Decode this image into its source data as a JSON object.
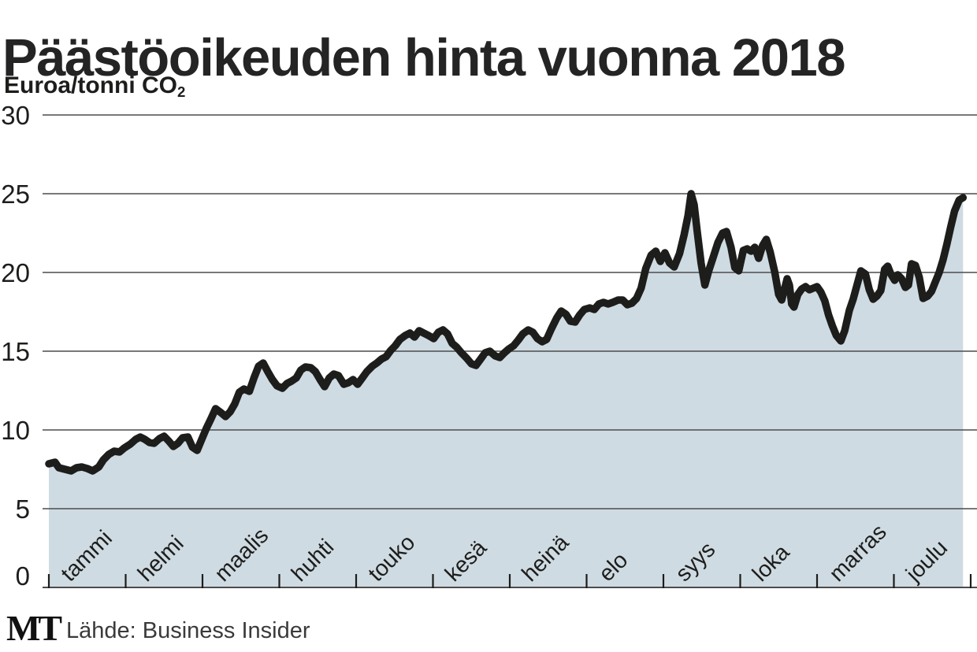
{
  "title": "Päästöoikeuden hinta vuonna 2018",
  "unit": {
    "text": "Euroa/tonni CO",
    "subscript": "2"
  },
  "footer": {
    "logo": "MT",
    "source": "Lähde: Business Insider"
  },
  "chart_data": {
    "type": "area",
    "title": "Päästöoikeuden hinta vuonna 2018",
    "ylabel": "Euroa/tonni CO2",
    "ylim": [
      0,
      30
    ],
    "y_ticks": [
      30,
      25,
      20,
      15,
      10,
      5,
      0
    ],
    "x_months": [
      "tammi",
      "helmi",
      "maalis",
      "huhti",
      "touko",
      "kesä",
      "heinä",
      "elo",
      "syys",
      "loka",
      "marras",
      "joulu"
    ],
    "x_unit": "months (0 = Jan 1, 1 = Feb 1, ... 11.9 = end of Dec)",
    "grid": true,
    "legend": false,
    "colors": {
      "line": "#1d1d1b",
      "area": "#cfdbe2",
      "grid": "#4c4c4c",
      "tick": "#1d1d1b",
      "label": "#1d1d1b"
    },
    "points": [
      [
        0.0,
        7.85
      ],
      [
        0.08,
        7.95
      ],
      [
        0.13,
        7.6
      ],
      [
        0.21,
        7.5
      ],
      [
        0.29,
        7.4
      ],
      [
        0.36,
        7.6
      ],
      [
        0.43,
        7.65
      ],
      [
        0.5,
        7.55
      ],
      [
        0.57,
        7.4
      ],
      [
        0.65,
        7.65
      ],
      [
        0.71,
        8.1
      ],
      [
        0.78,
        8.45
      ],
      [
        0.85,
        8.65
      ],
      [
        0.92,
        8.6
      ],
      [
        0.98,
        8.85
      ],
      [
        1.06,
        9.1
      ],
      [
        1.13,
        9.4
      ],
      [
        1.19,
        9.55
      ],
      [
        1.25,
        9.4
      ],
      [
        1.31,
        9.2
      ],
      [
        1.37,
        9.15
      ],
      [
        1.44,
        9.45
      ],
      [
        1.5,
        9.6
      ],
      [
        1.56,
        9.3
      ],
      [
        1.62,
        8.95
      ],
      [
        1.68,
        9.15
      ],
      [
        1.74,
        9.5
      ],
      [
        1.81,
        9.55
      ],
      [
        1.87,
        8.9
      ],
      [
        1.93,
        8.7
      ],
      [
        1.99,
        9.4
      ],
      [
        2.05,
        10.1
      ],
      [
        2.11,
        10.7
      ],
      [
        2.17,
        11.35
      ],
      [
        2.24,
        11.1
      ],
      [
        2.3,
        10.85
      ],
      [
        2.36,
        11.15
      ],
      [
        2.42,
        11.65
      ],
      [
        2.48,
        12.4
      ],
      [
        2.54,
        12.6
      ],
      [
        2.61,
        12.45
      ],
      [
        2.67,
        13.3
      ],
      [
        2.73,
        14.05
      ],
      [
        2.79,
        14.25
      ],
      [
        2.85,
        13.7
      ],
      [
        2.91,
        13.2
      ],
      [
        2.97,
        12.8
      ],
      [
        3.04,
        12.65
      ],
      [
        3.1,
        12.95
      ],
      [
        3.16,
        13.1
      ],
      [
        3.22,
        13.3
      ],
      [
        3.28,
        13.8
      ],
      [
        3.34,
        14.0
      ],
      [
        3.41,
        13.95
      ],
      [
        3.47,
        13.7
      ],
      [
        3.53,
        13.2
      ],
      [
        3.59,
        12.75
      ],
      [
        3.65,
        13.3
      ],
      [
        3.71,
        13.55
      ],
      [
        3.77,
        13.45
      ],
      [
        3.84,
        12.9
      ],
      [
        3.9,
        13.0
      ],
      [
        3.96,
        13.2
      ],
      [
        4.02,
        12.9
      ],
      [
        4.08,
        13.3
      ],
      [
        4.14,
        13.7
      ],
      [
        4.21,
        14.05
      ],
      [
        4.27,
        14.25
      ],
      [
        4.33,
        14.5
      ],
      [
        4.39,
        14.65
      ],
      [
        4.45,
        15.05
      ],
      [
        4.51,
        15.35
      ],
      [
        4.57,
        15.75
      ],
      [
        4.64,
        16.0
      ],
      [
        4.7,
        16.15
      ],
      [
        4.76,
        15.9
      ],
      [
        4.82,
        16.3
      ],
      [
        4.88,
        16.15
      ],
      [
        4.94,
        16.0
      ],
      [
        5.01,
        15.8
      ],
      [
        5.07,
        16.2
      ],
      [
        5.13,
        16.35
      ],
      [
        5.19,
        16.1
      ],
      [
        5.25,
        15.5
      ],
      [
        5.31,
        15.25
      ],
      [
        5.37,
        14.9
      ],
      [
        5.44,
        14.55
      ],
      [
        5.5,
        14.2
      ],
      [
        5.56,
        14.1
      ],
      [
        5.62,
        14.5
      ],
      [
        5.68,
        14.9
      ],
      [
        5.74,
        15.0
      ],
      [
        5.81,
        14.7
      ],
      [
        5.87,
        14.6
      ],
      [
        5.93,
        14.9
      ],
      [
        5.99,
        15.15
      ],
      [
        6.05,
        15.35
      ],
      [
        6.11,
        15.7
      ],
      [
        6.17,
        16.1
      ],
      [
        6.24,
        16.35
      ],
      [
        6.3,
        16.2
      ],
      [
        6.36,
        15.8
      ],
      [
        6.42,
        15.6
      ],
      [
        6.48,
        15.75
      ],
      [
        6.54,
        16.4
      ],
      [
        6.61,
        17.1
      ],
      [
        6.67,
        17.55
      ],
      [
        6.73,
        17.35
      ],
      [
        6.79,
        16.9
      ],
      [
        6.85,
        16.85
      ],
      [
        6.91,
        17.3
      ],
      [
        6.97,
        17.65
      ],
      [
        7.04,
        17.75
      ],
      [
        7.1,
        17.65
      ],
      [
        7.16,
        18.0
      ],
      [
        7.22,
        18.1
      ],
      [
        7.28,
        18.0
      ],
      [
        7.34,
        18.1
      ],
      [
        7.41,
        18.25
      ],
      [
        7.47,
        18.25
      ],
      [
        7.53,
        17.95
      ],
      [
        7.59,
        18.05
      ],
      [
        7.65,
        18.35
      ],
      [
        7.71,
        19.0
      ],
      [
        7.77,
        20.25
      ],
      [
        7.84,
        21.1
      ],
      [
        7.9,
        21.35
      ],
      [
        7.96,
        20.7
      ],
      [
        8.02,
        21.25
      ],
      [
        8.08,
        20.6
      ],
      [
        8.14,
        20.35
      ],
      [
        8.21,
        21.2
      ],
      [
        8.27,
        22.4
      ],
      [
        8.32,
        23.6
      ],
      [
        8.36,
        25.0
      ],
      [
        8.4,
        24.3
      ],
      [
        8.44,
        22.6
      ],
      [
        8.49,
        20.6
      ],
      [
        8.54,
        19.2
      ],
      [
        8.59,
        20.1
      ],
      [
        8.65,
        21.0
      ],
      [
        8.71,
        21.9
      ],
      [
        8.77,
        22.5
      ],
      [
        8.82,
        22.6
      ],
      [
        8.88,
        21.6
      ],
      [
        8.93,
        20.3
      ],
      [
        8.98,
        20.1
      ],
      [
        9.04,
        21.4
      ],
      [
        9.09,
        21.5
      ],
      [
        9.14,
        21.35
      ],
      [
        9.19,
        21.6
      ],
      [
        9.24,
        20.9
      ],
      [
        9.29,
        21.7
      ],
      [
        9.34,
        22.1
      ],
      [
        9.39,
        21.3
      ],
      [
        9.45,
        20.0
      ],
      [
        9.5,
        18.6
      ],
      [
        9.54,
        18.25
      ],
      [
        9.58,
        19.0
      ],
      [
        9.61,
        19.6
      ],
      [
        9.64,
        19.2
      ],
      [
        9.67,
        18.0
      ],
      [
        9.7,
        17.8
      ],
      [
        9.75,
        18.6
      ],
      [
        9.8,
        18.95
      ],
      [
        9.85,
        19.1
      ],
      [
        9.9,
        18.9
      ],
      [
        9.95,
        19.0
      ],
      [
        10.0,
        19.1
      ],
      [
        10.05,
        18.75
      ],
      [
        10.1,
        18.2
      ],
      [
        10.15,
        17.3
      ],
      [
        10.2,
        16.6
      ],
      [
        10.25,
        16.0
      ],
      [
        10.31,
        15.65
      ],
      [
        10.36,
        16.3
      ],
      [
        10.42,
        17.6
      ],
      [
        10.47,
        18.3
      ],
      [
        10.52,
        19.2
      ],
      [
        10.57,
        20.1
      ],
      [
        10.63,
        19.9
      ],
      [
        10.68,
        18.9
      ],
      [
        10.73,
        18.3
      ],
      [
        10.78,
        18.5
      ],
      [
        10.83,
        18.85
      ],
      [
        10.88,
        20.2
      ],
      [
        10.92,
        20.4
      ],
      [
        10.96,
        19.9
      ],
      [
        11.01,
        19.5
      ],
      [
        11.05,
        19.85
      ],
      [
        11.1,
        19.6
      ],
      [
        11.15,
        19.05
      ],
      [
        11.19,
        19.2
      ],
      [
        11.23,
        20.55
      ],
      [
        11.28,
        20.45
      ],
      [
        11.33,
        19.7
      ],
      [
        11.38,
        18.35
      ],
      [
        11.44,
        18.5
      ],
      [
        11.49,
        18.8
      ],
      [
        11.54,
        19.4
      ],
      [
        11.59,
        20.0
      ],
      [
        11.64,
        20.8
      ],
      [
        11.69,
        21.8
      ],
      [
        11.74,
        22.9
      ],
      [
        11.79,
        23.9
      ],
      [
        11.85,
        24.6
      ],
      [
        11.9,
        24.75
      ]
    ]
  }
}
